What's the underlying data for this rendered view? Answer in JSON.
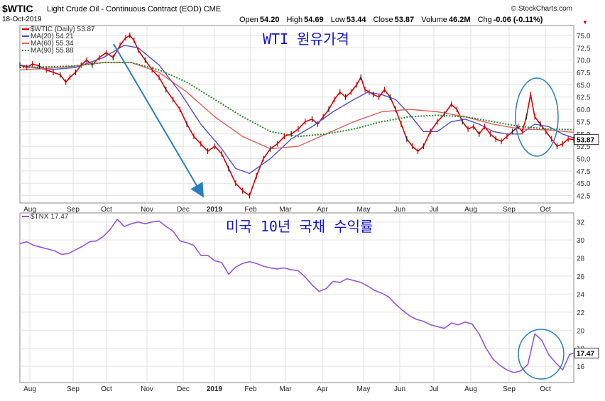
{
  "header": {
    "symbol": "$WTIC",
    "name": "Light Crude Oil - Continuous Contract (EOD)",
    "exchange": "CME",
    "date": "18-Oct-2019",
    "source": "© StockCharts.com",
    "open_label": "Open",
    "open": "54.20",
    "high_label": "High",
    "high": "54.69",
    "low_label": "Low",
    "low": "53.44",
    "close_label": "Close",
    "close": "53.87",
    "volume_label": "Volume",
    "volume": "46.2M",
    "chg_label": "Chg",
    "chg": "-0.06 (-0.11%)"
  },
  "colors": {
    "price": "#d40000",
    "ma20": "#5050c8",
    "ma60": "#e06060",
    "ma90": "#2a8a2a",
    "tnx": "#9a55d8",
    "annotation": "#2b7fc0",
    "title_text": "#1414c8",
    "grid": "#e2e2e2"
  },
  "chart_data": [
    {
      "type": "line",
      "title": "WTI 원유가격",
      "legend": [
        "$WTIC (Daily) 53.87",
        "MA(20) 54.21",
        "MA(60) 55.34",
        "MA(90) 55.88"
      ],
      "legend_placement": "top-left",
      "ylim": [
        41,
        77
      ],
      "y_ticks": [
        "42.5",
        "45.0",
        "47.5",
        "50.0",
        "52.5",
        "55.0",
        "57.5",
        "60.0",
        "62.5",
        "65.0",
        "67.5",
        "70.0",
        "72.5",
        "75.0"
      ],
      "x_ticks": [
        "Aug",
        "Sep",
        "Oct",
        "Nov",
        "Dec",
        "2019",
        "Feb",
        "Mar",
        "Apr",
        "May",
        "Jun",
        "Jul",
        "Aug",
        "Sep",
        "Oct"
      ],
      "last_value_label": "53.87",
      "grid": true,
      "series": [
        {
          "name": "$WTIC (Daily) 53.87",
          "x": [
            0,
            10,
            18,
            28,
            38,
            48,
            58,
            66,
            72,
            80,
            88,
            96,
            104,
            114,
            124,
            134,
            144,
            152,
            158,
            164,
            170,
            180,
            190,
            200,
            210,
            220,
            230,
            240,
            250,
            260,
            270,
            280,
            290,
            300,
            310,
            320,
            330,
            340,
            350,
            360,
            370,
            380,
            390,
            400,
            410,
            420,
            428,
            436,
            444,
            452,
            460,
            468,
            476,
            484,
            490,
            496,
            502,
            508,
            516,
            524,
            532,
            540,
            548,
            556,
            564,
            572,
            580,
            590,
            600,
            610,
            620,
            628,
            636,
            644,
            652,
            660,
            668,
            676,
            684,
            692,
            700,
            708,
            716,
            722,
            728,
            734,
            740,
            748,
            756,
            764,
            772,
            780,
            788,
            796
          ],
          "values": [
            69.0,
            68.5,
            69.2,
            68.8,
            68.0,
            67.5,
            67.0,
            65.5,
            66.5,
            67.5,
            69.0,
            70.0,
            69.0,
            70.5,
            71.5,
            70.5,
            73.0,
            74.5,
            75.0,
            74.0,
            72.0,
            70.0,
            68.0,
            66.5,
            64.0,
            62.0,
            60.0,
            57.0,
            54.5,
            53.0,
            51.5,
            52.5,
            51.0,
            48.0,
            45.0,
            43.5,
            42.5,
            46.5,
            50.0,
            52.0,
            53.0,
            54.5,
            55.0,
            56.0,
            57.5,
            58.0,
            57.0,
            58.5,
            60.0,
            62.0,
            63.5,
            62.5,
            63.5,
            65.0,
            66.5,
            64.0,
            63.5,
            63.0,
            62.5,
            64.0,
            62.5,
            60.0,
            57.0,
            54.0,
            52.5,
            51.5,
            52.5,
            55.5,
            57.5,
            59.0,
            61.0,
            60.0,
            57.5,
            56.0,
            56.5,
            55.0,
            56.5,
            55.0,
            54.0,
            53.5,
            54.5,
            55.5,
            56.5,
            55.5,
            58.5,
            63.0,
            58.5,
            57.0,
            55.5,
            54.0,
            52.5,
            53.0,
            54.0,
            53.87
          ]
        },
        {
          "name": "MA(20) 54.21",
          "x": [
            0,
            40,
            80,
            120,
            150,
            170,
            200,
            230,
            260,
            290,
            310,
            330,
            360,
            390,
            420,
            450,
            480,
            500,
            520,
            540,
            560,
            580,
            600,
            620,
            640,
            660,
            680,
            700,
            720,
            740,
            760,
            780,
            796
          ],
          "values": [
            69.0,
            68.0,
            68.5,
            70.5,
            73.0,
            72.5,
            69.0,
            63.5,
            57.0,
            52.0,
            48.0,
            47.0,
            50.0,
            54.0,
            56.5,
            59.5,
            62.0,
            63.5,
            63.0,
            62.0,
            59.0,
            55.5,
            55.5,
            57.5,
            58.0,
            57.0,
            55.5,
            55.0,
            55.0,
            57.0,
            56.5,
            55.0,
            54.21
          ]
        },
        {
          "name": "MA(60) 55.34",
          "x": [
            0,
            40,
            80,
            120,
            160,
            200,
            240,
            280,
            320,
            360,
            400,
            440,
            480,
            520,
            560,
            600,
            640,
            680,
            720,
            760,
            796
          ],
          "values": [
            68.0,
            68.3,
            68.8,
            69.5,
            69.5,
            67.5,
            63.5,
            58.5,
            54.5,
            52.0,
            52.5,
            55.0,
            57.5,
            59.5,
            60.0,
            59.5,
            58.5,
            57.0,
            56.0,
            55.8,
            55.34
          ]
        },
        {
          "name": "MA(90) 55.88",
          "x": [
            0,
            40,
            80,
            120,
            160,
            200,
            240,
            280,
            320,
            360,
            400,
            440,
            480,
            520,
            560,
            600,
            640,
            680,
            720,
            760,
            796
          ],
          "values": [
            68.5,
            68.6,
            68.8,
            69.5,
            69.5,
            68.0,
            65.5,
            62.0,
            58.5,
            55.5,
            54.5,
            55.0,
            56.0,
            57.5,
            58.5,
            58.8,
            58.5,
            57.5,
            56.5,
            56.0,
            55.88
          ]
        }
      ]
    },
    {
      "type": "line",
      "title": "미국 10년 국채 수익률",
      "legend": [
        "$TNX 17.47"
      ],
      "legend_placement": "top-left",
      "ylim": [
        14.2,
        33
      ],
      "y_ticks": [
        "16",
        "18",
        "20",
        "22",
        "24",
        "26",
        "28",
        "30",
        "32"
      ],
      "x_ticks": [
        "Aug",
        "Sep",
        "Oct",
        "Nov",
        "Dec",
        "2019",
        "Feb",
        "Mar",
        "Apr",
        "May",
        "Jun",
        "Jul",
        "Aug",
        "Sep",
        "Oct"
      ],
      "last_value_label": "17.47",
      "grid": true,
      "series": [
        {
          "name": "$TNX 17.47",
          "x": [
            0,
            10,
            20,
            30,
            40,
            50,
            60,
            70,
            80,
            90,
            100,
            110,
            120,
            130,
            140,
            150,
            160,
            170,
            180,
            190,
            200,
            210,
            220,
            230,
            240,
            250,
            260,
            270,
            280,
            290,
            300,
            310,
            320,
            330,
            340,
            350,
            360,
            370,
            380,
            390,
            400,
            410,
            420,
            430,
            440,
            450,
            460,
            470,
            480,
            490,
            500,
            510,
            520,
            530,
            540,
            550,
            560,
            570,
            580,
            590,
            600,
            610,
            620,
            630,
            640,
            650,
            660,
            670,
            680,
            690,
            700,
            710,
            720,
            730,
            740,
            750,
            760,
            770,
            780,
            790,
            796
          ],
          "values": [
            29.6,
            29.8,
            29.4,
            29.2,
            29.0,
            28.8,
            28.4,
            28.5,
            28.9,
            29.3,
            29.8,
            29.9,
            30.4,
            31.2,
            32.3,
            31.5,
            31.8,
            32.0,
            31.8,
            32.0,
            32.1,
            31.5,
            31.0,
            29.9,
            29.7,
            29.4,
            28.3,
            28.3,
            27.7,
            27.5,
            26.2,
            27.0,
            27.4,
            27.6,
            27.4,
            27.1,
            26.9,
            26.8,
            26.9,
            26.7,
            26.6,
            25.9,
            25.0,
            24.3,
            24.6,
            25.4,
            25.3,
            25.7,
            25.5,
            25.3,
            24.9,
            24.4,
            24.1,
            23.7,
            22.9,
            22.2,
            21.6,
            21.2,
            21.0,
            20.6,
            20.4,
            20.2,
            20.8,
            20.6,
            20.9,
            20.7,
            19.6,
            18.0,
            16.8,
            16.1,
            15.6,
            15.3,
            15.5,
            16.2,
            19.6,
            18.9,
            17.3,
            16.4,
            15.6,
            17.3,
            17.47
          ]
        }
      ]
    }
  ],
  "bottom_axis": [
    "Aug",
    "Sep",
    "Oct",
    "Nov",
    "Dec",
    "2019",
    "Feb",
    "Mar",
    "Apr",
    "May",
    "Jun",
    "Jul",
    "Aug",
    "Sep",
    "Oct"
  ]
}
